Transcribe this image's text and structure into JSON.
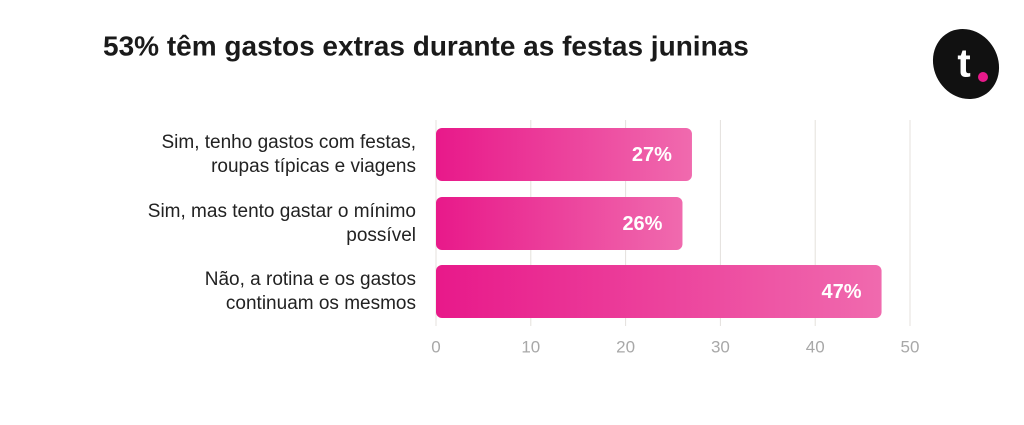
{
  "chart_data": {
    "type": "barh",
    "title": "53% têm gastos extras durante as festas juninas",
    "logo": "t",
    "categories": [
      "Sim, tenho gastos com festas,\nroupas típicas e viagens",
      "Sim, mas tento gastar o mínimo\npossível",
      "Não, a rotina e os gastos\ncontinuam os mesmos"
    ],
    "values": [
      27,
      26,
      47
    ],
    "value_labels": [
      "27%",
      "26%",
      "47%"
    ],
    "gradient": [
      "#e8198a",
      "#f06aae"
    ],
    "xlim": [
      0,
      50
    ],
    "xticks": [
      0,
      10,
      20,
      30,
      40,
      50
    ],
    "grid": true
  }
}
